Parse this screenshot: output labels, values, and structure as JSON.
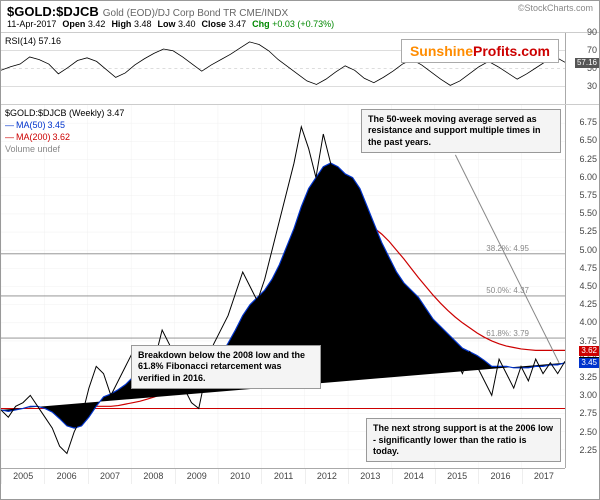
{
  "header": {
    "ticker": "$GOLD:$DJCB",
    "desc": "Gold (EOD)/DJ Corp Bond TR  CME/INDX",
    "source": "©StockCharts.com",
    "date": "11-Apr-2017",
    "open_label": "Open",
    "open": "3.42",
    "high_label": "High",
    "high": "3.48",
    "low_label": "Low",
    "low": "3.40",
    "close_label": "Close",
    "close": "3.47",
    "chg_label": "Chg",
    "chg": "+0.03 (+0.73%)",
    "chg_color": "#008800"
  },
  "watermark": {
    "part1": "Sunshine",
    "part2": "Profits.com"
  },
  "rsi": {
    "label": "RSI(14)",
    "value": "57.16",
    "ymin": 10,
    "ymax": 90,
    "ticks": [
      30,
      50,
      70,
      90
    ],
    "band_low": 30,
    "band_high": 70,
    "current_badge": "57.16",
    "series": [
      48,
      52,
      55,
      63,
      60,
      55,
      44,
      51,
      59,
      62,
      58,
      49,
      40,
      45,
      54,
      61,
      67,
      72,
      70,
      63,
      55,
      47,
      54,
      60,
      66,
      73,
      80,
      77,
      70,
      60,
      52,
      44,
      36,
      32,
      38,
      46,
      53,
      48,
      39,
      34,
      40,
      47,
      55,
      60,
      54,
      46,
      38,
      31,
      36,
      44,
      52,
      58,
      52,
      45,
      38,
      44,
      51,
      58,
      63,
      57
    ]
  },
  "main": {
    "legend": {
      "ticker_line": "$GOLD:$DJCB (Weekly) 3.47",
      "ma50_label": "MA(50)",
      "ma50_val": "3.45",
      "ma50_color": "#0033cc",
      "ma200_label": "MA(200)",
      "ma200_val": "3.62",
      "ma200_color": "#cc0000",
      "vol_label": "Volume undef"
    },
    "ymin": 2.0,
    "ymax": 7.0,
    "yticks": [
      2.25,
      2.5,
      2.75,
      3.0,
      3.25,
      3.5,
      3.75,
      4.0,
      4.25,
      4.5,
      4.75,
      5.0,
      5.25,
      5.5,
      5.75,
      6.0,
      6.25,
      6.5,
      6.75
    ],
    "xlabels": [
      "2005",
      "2006",
      "2007",
      "2008",
      "2009",
      "2010",
      "2011",
      "2012",
      "2013",
      "2014",
      "2015",
      "2016",
      "2017"
    ],
    "fibs": [
      {
        "level": 4.95,
        "label": "38.2%: 4.95"
      },
      {
        "level": 4.37,
        "label": "50.0%: 4.37"
      },
      {
        "level": 3.79,
        "label": "61.8%: 3.79"
      }
    ],
    "hline_2008low": 2.82,
    "hline_2008low_color": "#cc0000",
    "price_series": [
      2.8,
      2.7,
      2.85,
      2.9,
      3.0,
      2.85,
      2.7,
      2.55,
      2.3,
      2.2,
      2.5,
      2.7,
      3.1,
      3.4,
      3.3,
      3.0,
      3.2,
      3.4,
      3.6,
      3.4,
      3.1,
      3.5,
      3.9,
      3.7,
      3.4,
      3.1,
      2.9,
      2.82,
      3.3,
      3.7,
      3.9,
      4.1,
      4.4,
      4.7,
      4.5,
      4.3,
      4.6,
      5.0,
      5.4,
      5.8,
      6.2,
      6.7,
      6.4,
      6.0,
      6.6,
      6.2,
      5.8,
      5.6,
      5.9,
      5.4,
      5.0,
      4.7,
      4.3,
      4.5,
      4.2,
      4.0,
      4.3,
      4.1,
      3.8,
      3.6,
      3.9,
      3.7,
      3.5,
      3.3,
      3.6,
      3.4,
      3.2,
      3.0,
      3.5,
      3.3,
      3.1,
      3.4,
      3.2,
      3.5,
      3.3,
      3.45,
      3.3,
      3.47
    ],
    "ma50_series": [
      2.8,
      2.78,
      2.8,
      2.82,
      2.85,
      2.85,
      2.82,
      2.77,
      2.68,
      2.58,
      2.55,
      2.58,
      2.7,
      2.85,
      2.98,
      3.02,
      3.08,
      3.15,
      3.25,
      3.32,
      3.32,
      3.35,
      3.45,
      3.55,
      3.55,
      3.5,
      3.4,
      3.3,
      3.3,
      3.4,
      3.55,
      3.72,
      3.9,
      4.1,
      4.25,
      4.35,
      4.45,
      4.6,
      4.8,
      5.05,
      5.3,
      5.6,
      5.85,
      6.0,
      6.15,
      6.2,
      6.15,
      6.05,
      6.0,
      5.85,
      5.6,
      5.35,
      5.1,
      4.9,
      4.7,
      4.55,
      4.45,
      4.35,
      4.2,
      4.05,
      3.95,
      3.85,
      3.75,
      3.65,
      3.6,
      3.55,
      3.48,
      3.4,
      3.4,
      3.4,
      3.38,
      3.38,
      3.38,
      3.4,
      3.4,
      3.42,
      3.42,
      3.45
    ],
    "ma200_series": [
      null,
      null,
      null,
      null,
      null,
      null,
      null,
      null,
      null,
      null,
      null,
      null,
      2.85,
      2.85,
      2.85,
      2.85,
      2.86,
      2.88,
      2.9,
      2.92,
      2.95,
      2.98,
      3.02,
      3.07,
      3.12,
      3.16,
      3.2,
      3.22,
      3.25,
      3.3,
      3.36,
      3.43,
      3.52,
      3.62,
      3.72,
      3.82,
      3.92,
      4.03,
      4.15,
      4.28,
      4.42,
      4.57,
      4.72,
      4.86,
      5.0,
      5.12,
      5.22,
      5.3,
      5.35,
      5.37,
      5.35,
      5.3,
      5.22,
      5.12,
      5.0,
      4.88,
      4.75,
      4.62,
      4.5,
      4.38,
      4.27,
      4.17,
      4.08,
      4.0,
      3.93,
      3.86,
      3.8,
      3.75,
      3.71,
      3.68,
      3.66,
      3.64,
      3.63,
      3.62,
      3.62,
      3.62,
      3.62,
      3.62
    ],
    "badges": [
      {
        "value": "3.62",
        "color": "#cc0000"
      },
      {
        "value": "3.47",
        "color": "#000000"
      },
      {
        "value": "3.45",
        "color": "#0033cc"
      }
    ]
  },
  "annotations": {
    "a1": "The 50-week moving average served as resistance and support multiple times in the past years.",
    "a2": "Breakdown below the 2008 low and the 61.8% Fibonacci retarcement was verified in 2016.",
    "a3": "The next strong support is at the 2006 low - significantly lower than the ratio is today."
  }
}
